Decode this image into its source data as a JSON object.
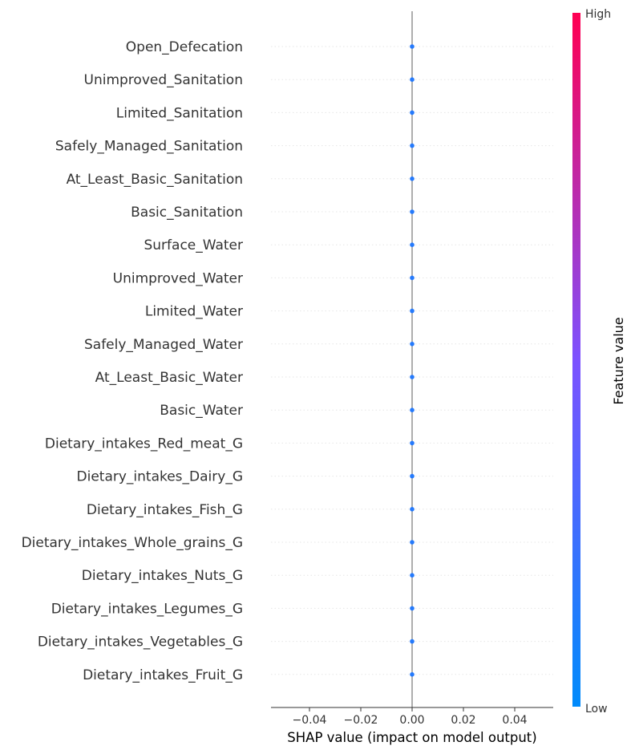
{
  "chart_data": {
    "type": "scatter",
    "subtype": "shap-beeswarm-summary",
    "title": "",
    "xlabel": "SHAP value (impact on model output)",
    "ylabel": "",
    "xlim": [
      -0.055,
      0.055
    ],
    "xticks": [
      -0.04,
      -0.02,
      0.0,
      0.02,
      0.04
    ],
    "xtick_labels": [
      "−0.04",
      "−0.02",
      "0.00",
      "0.02",
      "0.04"
    ],
    "features": [
      "Open_Defecation",
      "Unimproved_Sanitation",
      "Limited_Sanitation",
      "Safely_Managed_Sanitation",
      "At_Least_Basic_Sanitation",
      "Basic_Sanitation",
      "Surface_Water",
      "Unimproved_Water",
      "Limited_Water",
      "Safely_Managed_Water",
      "At_Least_Basic_Water",
      "Basic_Water",
      "Dietary_intakes_Red_meat_G",
      "Dietary_intakes_Dairy_G",
      "Dietary_intakes_Fish_G",
      "Dietary_intakes_Whole_grains_G",
      "Dietary_intakes_Nuts_G",
      "Dietary_intakes_Legumes_G",
      "Dietary_intakes_Vegetables_G",
      "Dietary_intakes_Fruit_G"
    ],
    "shap_values": [
      0,
      0,
      0,
      0,
      0,
      0,
      0,
      0,
      0,
      0,
      0,
      0,
      0,
      0,
      0,
      0,
      0,
      0,
      0,
      0
    ],
    "feature_value_level": [
      0.15,
      0.15,
      0.15,
      0.15,
      0.15,
      0.15,
      0.15,
      0.15,
      0.15,
      0.15,
      0.15,
      0.15,
      0.15,
      0.15,
      0.15,
      0.15,
      0.15,
      0.15,
      0.15,
      0.15
    ],
    "gridlines": "horizontal-dotted",
    "zero_line": true,
    "colorbar": {
      "title": "Feature value",
      "high_label": "High",
      "low_label": "Low",
      "colors": [
        "#008bfb",
        "#7c52ff",
        "#ff0052"
      ]
    },
    "colors": {
      "point": "#1e88e5",
      "zero_line": "#999999",
      "grid": "#e6e6e6",
      "axis": "#333333"
    }
  }
}
